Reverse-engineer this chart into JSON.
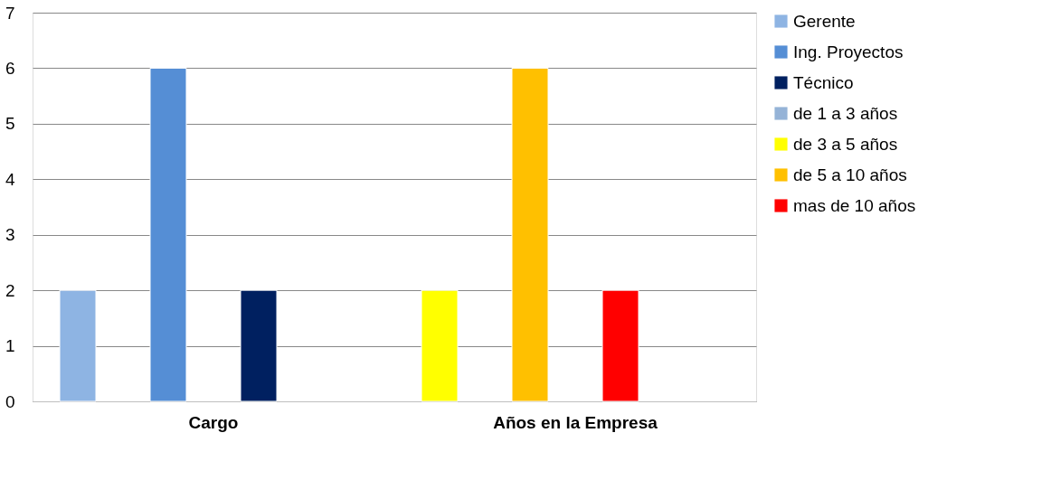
{
  "chart_data": {
    "type": "bar",
    "categories": [
      "Cargo",
      "Años en la Empresa"
    ],
    "series": [
      {
        "name": "Gerente",
        "color": "#8eb4e3",
        "values": [
          2,
          null
        ]
      },
      {
        "name": "Ing. Proyectos",
        "color": "#558ed5",
        "values": [
          6,
          null
        ]
      },
      {
        "name": "Técnico",
        "color": "#002060",
        "values": [
          2,
          null
        ]
      },
      {
        "name": "de 1 a 3 años",
        "color": "#95b3d7",
        "values": [
          null,
          null
        ]
      },
      {
        "name": "de 3 a 5 años",
        "color": "#ffff00",
        "values": [
          null,
          2
        ]
      },
      {
        "name": "de 5 a 10 años",
        "color": "#ffc000",
        "values": [
          null,
          6
        ]
      },
      {
        "name": "mas de 10 años",
        "color": "#ff0000",
        "values": [
          null,
          2
        ]
      }
    ],
    "ylim": [
      0,
      7
    ],
    "yticks": [
      0,
      1,
      2,
      3,
      4,
      5,
      6,
      7
    ],
    "grid": "y",
    "legend": "right"
  }
}
